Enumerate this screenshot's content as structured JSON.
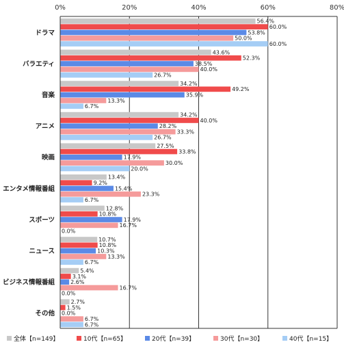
{
  "chart_data": {
    "type": "bar",
    "orientation": "horizontal",
    "xlim": [
      0,
      80
    ],
    "ticks": [
      0,
      20,
      40,
      60,
      80
    ],
    "tick_labels": [
      "0%",
      "20%",
      "40%",
      "60%",
      "80%"
    ],
    "grid": true,
    "legend_position": "bottom",
    "categories": [
      "ドラマ",
      "バラエティ",
      "音楽",
      "アニメ",
      "映画",
      "エンタメ情報番組",
      "スポーツ",
      "ニュース",
      "ビジネス情報番組",
      "その他"
    ],
    "series": [
      {
        "name": "全体【n=149】",
        "color": "#c8c8c8",
        "values": [
          56.4,
          43.6,
          34.2,
          34.2,
          27.5,
          13.4,
          12.8,
          10.7,
          5.4,
          2.7
        ],
        "labels": [
          "56.4%",
          "43.6%",
          "34.2%",
          "34.2%",
          "27.5%",
          "13.4%",
          "12.8%",
          "10.7%",
          "5.4%",
          "2.7%"
        ]
      },
      {
        "name": "10代【n=65】",
        "color": "#f04b4b",
        "values": [
          60.0,
          52.3,
          49.2,
          40.0,
          33.8,
          9.2,
          10.8,
          10.8,
          3.1,
          1.5
        ],
        "labels": [
          "60.0%",
          "52.3%",
          "49.2%",
          "40.0%",
          "33.8%",
          "9.2%",
          "10.8%",
          "10.8%",
          "3.1%",
          "1.5%"
        ]
      },
      {
        "name": "20代【n=39】",
        "color": "#5b8ae6",
        "values": [
          53.8,
          38.5,
          35.9,
          28.2,
          17.9,
          15.4,
          17.9,
          10.3,
          2.6,
          0.0
        ],
        "labels": [
          "53.8%",
          "38.5%",
          "35.9%",
          "28.2%",
          "17.9%",
          "15.4%",
          "17.9%",
          "10.3%",
          "2.6%",
          "0.0%"
        ]
      },
      {
        "name": "30代【n=30】",
        "color": "#f59b9b",
        "values": [
          50.0,
          40.0,
          13.3,
          33.3,
          30.0,
          23.3,
          16.7,
          13.3,
          16.7,
          6.7
        ],
        "labels": [
          "50.0%",
          "40.0%",
          "13.3%",
          "33.3%",
          "30.0%",
          "23.3%",
          "16.7%",
          "13.3%",
          "16.7%",
          "6.7%"
        ]
      },
      {
        "name": "40代【n=15】",
        "color": "#a5cdf5",
        "values": [
          60.0,
          26.7,
          6.7,
          26.7,
          20.0,
          6.7,
          0.0,
          6.7,
          0.0,
          6.7
        ],
        "labels": [
          "60.0%",
          "26.7%",
          "6.7%",
          "26.7%",
          "20.0%",
          "6.7%",
          "0.0%",
          "6.7%",
          "0.0%",
          "6.7%"
        ]
      }
    ]
  }
}
